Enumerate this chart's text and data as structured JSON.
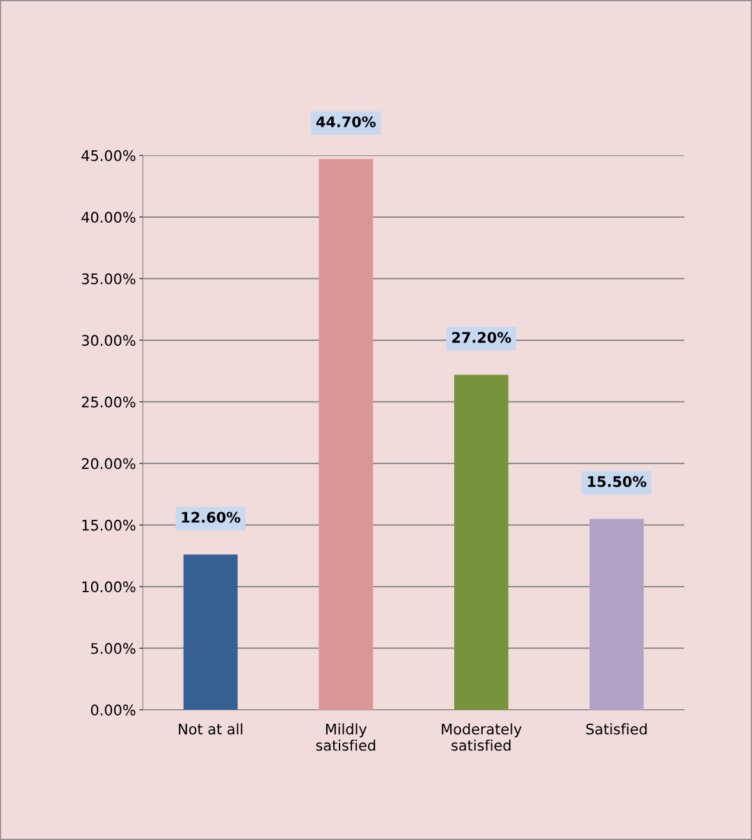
{
  "chart_data": {
    "type": "bar",
    "categories": [
      "Not at all",
      "Mildly\nsatisfied",
      "Moderately\nsatisfied",
      "Satisfied"
    ],
    "values": [
      12.6,
      44.7,
      27.2,
      15.5
    ],
    "colors": [
      "#376092",
      "#d99694",
      "#77933c",
      "#b3a2c7"
    ],
    "value_labels": [
      "12.60%",
      "44.70%",
      "27.20%",
      "15.50%"
    ],
    "ylim": [
      0,
      45
    ],
    "yticks": [
      {
        "value": 0,
        "label": "0.00%"
      },
      {
        "value": 5,
        "label": "5.00%"
      },
      {
        "value": 10,
        "label": "10.00%"
      },
      {
        "value": 15,
        "label": "15.00%"
      },
      {
        "value": 20,
        "label": "20.00%"
      },
      {
        "value": 25,
        "label": "25.00%"
      },
      {
        "value": 30,
        "label": "30.00%"
      },
      {
        "value": 35,
        "label": "35.00%"
      },
      {
        "value": 40,
        "label": "40.00%"
      },
      {
        "value": 45,
        "label": "45.00%"
      }
    ],
    "grid": "y",
    "legend": false
  }
}
